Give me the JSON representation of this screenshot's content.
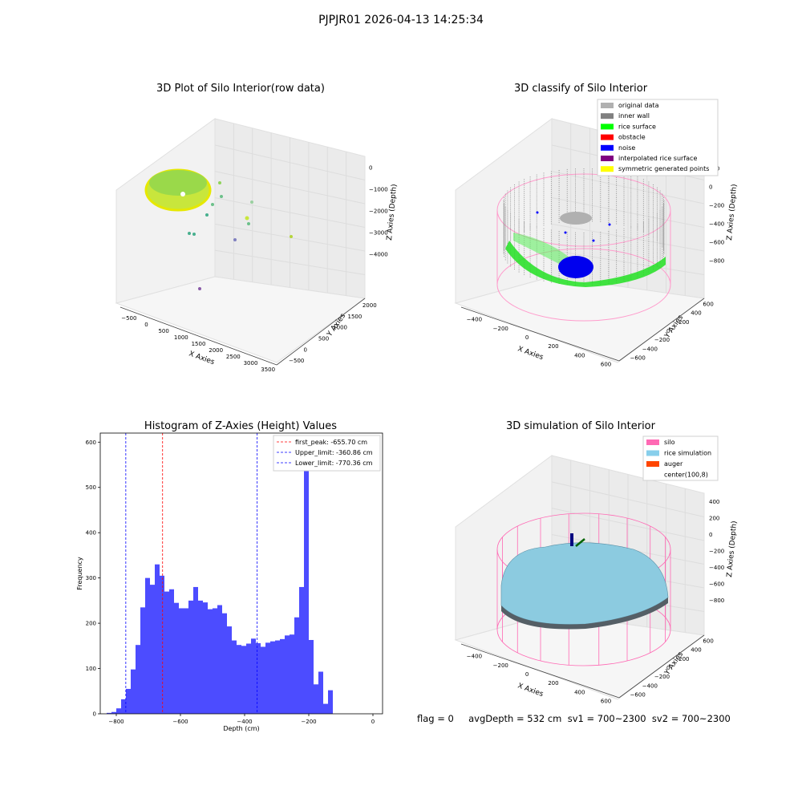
{
  "figure": {
    "suptitle": "PJPJR01 2026-04-13 14:25:34",
    "footer": "flag = 0     avgDepth = 532 cm  sv1 = 700~2300  sv2 = 700~2300"
  },
  "panel_raw": {
    "title": "3D Plot of Silo Interior(row data)",
    "xlabel": "X Axies",
    "ylabel": "Y Axies",
    "zlabel": "Z Axies (Depth)",
    "xticks": [
      "-500",
      "0",
      "500",
      "1000",
      "1500",
      "2000",
      "2500",
      "3000",
      "3500"
    ],
    "yticks": [
      "-500",
      "0",
      "500",
      "1000",
      "1500",
      "2000"
    ],
    "zticks": [
      "0",
      "-1000",
      "-2000",
      "-3000",
      "-4000"
    ]
  },
  "panel_classify": {
    "title": "3D classify of Silo Interior",
    "xlabel": "X Axies",
    "ylabel": "Y Axies",
    "zlabel": "Z Axies (Depth)",
    "xticks": [
      "-400",
      "-200",
      "0",
      "200",
      "400",
      "600"
    ],
    "yticks": [
      "-600",
      "-400",
      "-200",
      "0",
      "200",
      "400",
      "600"
    ],
    "zticks": [
      "200",
      "0",
      "-200",
      "-400",
      "-600",
      "-800"
    ],
    "legend": [
      {
        "label": "original data",
        "color": "#b0b0b0"
      },
      {
        "label": "inner wall",
        "color": "#808080"
      },
      {
        "label": "rice surface",
        "color": "#00ff00"
      },
      {
        "label": "obstacle",
        "color": "#ff0000"
      },
      {
        "label": "noise",
        "color": "#0000ff"
      },
      {
        "label": "interpolated rice surface",
        "color": "#800080"
      },
      {
        "label": "symmetric generated points",
        "color": "#ffff00"
      }
    ]
  },
  "panel_sim": {
    "title": "3D simulation of Silo Interior",
    "xlabel": "X Axies",
    "ylabel": "Y Axies",
    "zlabel": "Z Axies (Depth)",
    "xticks": [
      "-400",
      "-200",
      "0",
      "200",
      "400",
      "600"
    ],
    "yticks": [
      "-600",
      "-400",
      "-200",
      "0",
      "200",
      "400",
      "600"
    ],
    "zticks": [
      "400",
      "200",
      "0",
      "-200",
      "-400",
      "-600",
      "-800"
    ],
    "legend": [
      {
        "label": "silo",
        "color": "#ff69b4"
      },
      {
        "label": "rice simulation",
        "color": "#87ceeb"
      },
      {
        "label": "auger",
        "color": "#ff4500"
      },
      {
        "label": "center(100,8)",
        "color": "#ffffff"
      }
    ]
  },
  "chart_data": {
    "type": "bar",
    "title": "Histogram of Z-Axies (Height) Values",
    "xlabel": "Depth (cm)",
    "ylabel": "Frequency",
    "xlim": [
      -850,
      30
    ],
    "ylim": [
      0,
      620
    ],
    "xticks": [
      -800,
      -600,
      -400,
      -200,
      0
    ],
    "yticks": [
      0,
      100,
      200,
      300,
      400,
      500,
      600
    ],
    "bar_color": "#0000ff",
    "bar_alpha": 0.7,
    "bin_start": -830,
    "bin_width": 15,
    "values": [
      2,
      4,
      12,
      32,
      55,
      98,
      152,
      235,
      300,
      285,
      330,
      305,
      270,
      275,
      245,
      233,
      233,
      250,
      280,
      250,
      246,
      231,
      233,
      240,
      222,
      193,
      162,
      152,
      150,
      155,
      166,
      156,
      148,
      157,
      160,
      162,
      165,
      173,
      175,
      213,
      280,
      585,
      163,
      65,
      93,
      22,
      52
    ],
    "lines": [
      {
        "label": "first_peak: -655.70 cm",
        "x": -655.7,
        "color": "#ff0000"
      },
      {
        "label": "Upper_limit: -360.86 cm",
        "x": -360.86,
        "color": "#0000ff"
      },
      {
        "label": "Lower_limit: -770.36 cm",
        "x": -770.36,
        "color": "#0000ff"
      }
    ]
  }
}
